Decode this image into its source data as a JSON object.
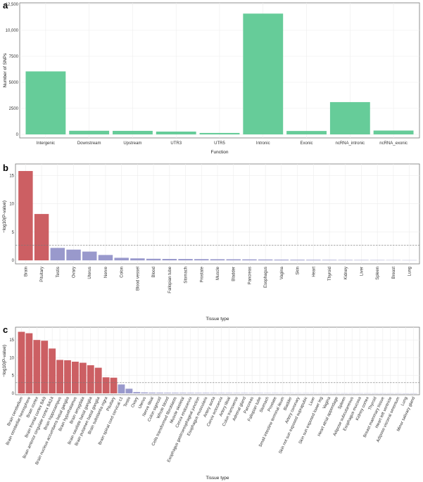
{
  "chart_data": [
    {
      "panel": "a",
      "type": "bar",
      "xlabel": "Function",
      "ylabel": "Number of SNPs",
      "ylim": [
        0,
        12500
      ],
      "yticks": [
        0,
        2500,
        5000,
        7500,
        10000,
        12500
      ],
      "ytick_labels": [
        "0",
        "2500",
        "5000",
        "7500",
        "10,000",
        "12,500"
      ],
      "categories": [
        "Intergenic",
        "Downstream",
        "Upstream",
        "UTR3",
        "UTR5",
        "Intronic",
        "Exonic",
        "ncRNA_intronic",
        "ncRNA_exonic"
      ],
      "values": [
        6050,
        350,
        340,
        270,
        140,
        11600,
        330,
        3100,
        370
      ],
      "colors": [
        "#66cc99",
        "#66cc99",
        "#66cc99",
        "#66cc99",
        "#66cc99",
        "#66cc99",
        "#66cc99",
        "#66cc99",
        "#66cc99"
      ],
      "label_rotation": 0
    },
    {
      "panel": "b",
      "type": "bar",
      "xlabel": "Tissue type",
      "ylabel": "−log10(P-value)",
      "ylim": [
        0,
        16.8
      ],
      "yticks": [
        0,
        5,
        10,
        15
      ],
      "ytick_labels": [
        "0",
        "5",
        "10",
        "15"
      ],
      "threshold": 2.7,
      "categories": [
        "Brain",
        "Pituitary",
        "Testis",
        "Ovary",
        "Uterus",
        "Nerve",
        "Colon",
        "Blood vessel",
        "Blood",
        "Fallopian tube",
        "Stomach",
        "Prostate",
        "Muscle",
        "Bladder",
        "Pancreas",
        "Esophagus",
        "Vagina",
        "Skin",
        "Heart",
        "Thyroid",
        "Kidney",
        "Liver",
        "Spleen",
        "Breast",
        "Lung"
      ],
      "values": [
        15.8,
        8.2,
        2.2,
        1.9,
        1.55,
        0.95,
        0.45,
        0.35,
        0.28,
        0.25,
        0.24,
        0.22,
        0.2,
        0.19,
        0.17,
        0.15,
        0.13,
        0.11,
        0.1,
        0.08,
        0.07,
        0.06,
        0.05,
        0.04,
        0.03
      ],
      "colors": [
        "#cc5f63",
        "#cc5f63",
        "#9999cc",
        "#9999cc",
        "#9999cc",
        "#9999cc",
        "#9999cc",
        "#9999cc",
        "#9999cc",
        "#9999cc",
        "#9999cc",
        "#9999cc",
        "#9999cc",
        "#9999cc",
        "#9999cc",
        "#9999cc",
        "#9999cc",
        "#9999cc",
        "#9999cc",
        "#9999cc",
        "#9999cc",
        "#9999cc",
        "#9999cc",
        "#9999cc",
        "#9999cc"
      ],
      "label_rotation": -90
    },
    {
      "panel": "c",
      "type": "bar",
      "xlabel": "Tissue type",
      "ylabel": "−log10(P-value)",
      "ylim": [
        0,
        18.2
      ],
      "yticks": [
        0,
        5,
        10,
        15
      ],
      "ytick_labels": [
        "0",
        "5",
        "10",
        "15"
      ],
      "threshold": 3.0,
      "categories": [
        "Brain cerebellum",
        "Brain cerebellar hemisphere",
        "Brain cortex",
        "Brain frontal cortex BA9",
        "Brain anterior cingulate cortex BA24",
        "Brain hippocampus",
        "Brain nucleus accumbens basal ganglia",
        "Brain hypothalamus",
        "Brain amygdala",
        "Brain caudate basal ganglia",
        "Brain putamen basal ganglia",
        "Brain substantia nigra",
        "Pituitary",
        "Brain spinal cord cervical c1",
        "Testis",
        "Ovary",
        "Uterus",
        "Nerve tibial",
        "Colon sigmoid",
        "Whole blood",
        "Cells transformed fibroblasts",
        "Muscle skeletal",
        "Cervix endocervix",
        "Esophagus gastroesophageal junction",
        "Esophagus muscularis",
        "Artery aorta",
        "Cervix ectocervix",
        "Artery tibial",
        "Colon transverse",
        "Adrenal gland",
        "Pancreas",
        "Fallopian tube",
        "Stomach",
        "Prostate",
        "Small intestine terminal ileum",
        "Bladder",
        "Artery coronary",
        "Skin not sun exposed suprapubic",
        "Liver",
        "Skin sun exposed lower leg",
        "Vagina",
        "Heart atrial appendage",
        "Spleen",
        "Adipose subcutaneous",
        "Esophagus mucosa",
        "Kidney cortex",
        "Thyroid",
        "Breast mammary tissue",
        "Heart left ventricle",
        "Adipose visceral omentum",
        "Lung",
        "Minor salivary gland"
      ],
      "values": [
        17.3,
        16.9,
        15.0,
        14.8,
        12.6,
        9.4,
        9.3,
        8.9,
        8.6,
        7.9,
        7.2,
        4.5,
        4.4,
        2.5,
        1.3,
        0.35,
        0.25,
        0.2,
        0.18,
        0.16,
        0.15,
        0.14,
        0.13,
        0.12,
        0.12,
        0.11,
        0.1,
        0.1,
        0.09,
        0.09,
        0.08,
        0.08,
        0.07,
        0.07,
        0.06,
        0.06,
        0.05,
        0.05,
        0.05,
        0.04,
        0.04,
        0.04,
        0.03,
        0.03,
        0.03,
        0.03,
        0.02,
        0.02,
        0.02,
        0.02,
        0.01,
        0.01
      ],
      "colors": [
        "#cc5f63",
        "#cc5f63",
        "#cc5f63",
        "#cc5f63",
        "#cc5f63",
        "#cc5f63",
        "#cc5f63",
        "#cc5f63",
        "#cc5f63",
        "#cc5f63",
        "#cc5f63",
        "#cc5f63",
        "#cc5f63",
        "#9999cc",
        "#9999cc",
        "#9999cc",
        "#9999cc",
        "#9999cc",
        "#9999cc",
        "#9999cc",
        "#9999cc",
        "#9999cc",
        "#9999cc",
        "#9999cc",
        "#9999cc",
        "#9999cc",
        "#9999cc",
        "#9999cc",
        "#9999cc",
        "#9999cc",
        "#9999cc",
        "#9999cc",
        "#9999cc",
        "#9999cc",
        "#9999cc",
        "#9999cc",
        "#9999cc",
        "#9999cc",
        "#9999cc",
        "#9999cc",
        "#9999cc",
        "#9999cc",
        "#9999cc",
        "#9999cc",
        "#9999cc",
        "#9999cc",
        "#9999cc",
        "#9999cc",
        "#9999cc",
        "#9999cc",
        "#9999cc",
        "#9999cc"
      ],
      "label_rotation": -65
    }
  ]
}
